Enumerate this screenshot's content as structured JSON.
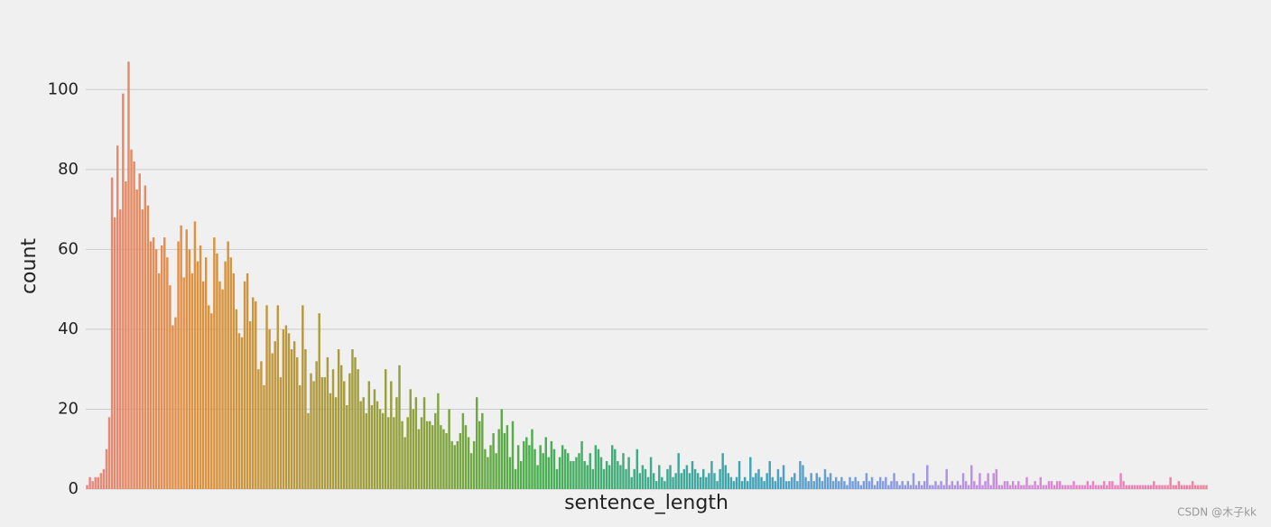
{
  "chart_data": {
    "type": "bar",
    "x_label": "sentence_length",
    "y_label": "count",
    "ylim": [
      0,
      110
    ],
    "yticks": [
      0,
      20,
      40,
      60,
      80,
      100
    ],
    "grid": true,
    "colors": [
      "#e8877f",
      "#e0913c",
      "#b19a3f",
      "#8ca23c",
      "#48af4c",
      "#3fab8a",
      "#41a2b8",
      "#7d9de0",
      "#c48fe0",
      "#ea83c6",
      "#f0829c"
    ],
    "values": [
      1,
      3,
      2,
      3,
      3,
      4,
      5,
      10,
      18,
      78,
      68,
      86,
      70,
      99,
      77,
      107,
      85,
      82,
      75,
      79,
      70,
      76,
      71,
      62,
      63,
      60,
      54,
      61,
      63,
      58,
      51,
      41,
      43,
      62,
      66,
      53,
      65,
      60,
      54,
      67,
      57,
      61,
      52,
      58,
      46,
      44,
      63,
      59,
      52,
      50,
      57,
      62,
      58,
      54,
      45,
      39,
      38,
      52,
      54,
      42,
      48,
      47,
      30,
      32,
      26,
      46,
      40,
      34,
      37,
      46,
      28,
      40,
      41,
      39,
      35,
      37,
      33,
      26,
      46,
      35,
      19,
      29,
      27,
      32,
      44,
      28,
      28,
      33,
      24,
      30,
      23,
      35,
      31,
      27,
      21,
      29,
      35,
      33,
      30,
      22,
      23,
      19,
      27,
      21,
      25,
      22,
      20,
      19,
      30,
      18,
      27,
      18,
      23,
      31,
      17,
      13,
      18,
      25,
      20,
      23,
      15,
      18,
      23,
      17,
      17,
      16,
      19,
      24,
      16,
      15,
      14,
      20,
      12,
      11,
      12,
      14,
      19,
      16,
      13,
      9,
      12,
      23,
      17,
      19,
      10,
      8,
      11,
      14,
      9,
      15,
      20,
      14,
      16,
      8,
      17,
      5,
      11,
      7,
      12,
      13,
      11,
      15,
      10,
      6,
      11,
      9,
      13,
      8,
      12,
      10,
      5,
      8,
      11,
      10,
      9,
      7,
      7,
      8,
      9,
      12,
      7,
      6,
      9,
      5,
      11,
      10,
      8,
      5,
      7,
      6,
      11,
      10,
      7,
      6,
      9,
      5,
      8,
      3,
      5,
      10,
      4,
      6,
      5,
      3,
      8,
      4,
      2,
      6,
      3,
      2,
      5,
      6,
      3,
      4,
      9,
      4,
      5,
      6,
      4,
      7,
      5,
      4,
      3,
      5,
      3,
      4,
      7,
      4,
      2,
      5,
      9,
      6,
      4,
      3,
      2,
      3,
      7,
      2,
      3,
      2,
      8,
      3,
      4,
      5,
      3,
      2,
      4,
      7,
      3,
      2,
      5,
      3,
      6,
      2,
      2,
      3,
      4,
      2,
      7,
      6,
      3,
      2,
      4,
      2,
      4,
      3,
      2,
      5,
      3,
      4,
      2,
      3,
      2,
      3,
      2,
      1,
      3,
      2,
      3,
      2,
      1,
      2,
      4,
      2,
      3,
      1,
      2,
      3,
      2,
      3,
      1,
      2,
      4,
      2,
      1,
      2,
      1,
      2,
      1,
      4,
      1,
      2,
      1,
      2,
      6,
      1,
      1,
      2,
      1,
      2,
      1,
      5,
      1,
      2,
      1,
      2,
      1,
      4,
      2,
      1,
      6,
      2,
      1,
      4,
      1,
      2,
      4,
      1,
      4,
      5,
      1,
      1,
      2,
      2,
      1,
      2,
      1,
      2,
      1,
      1,
      3,
      1,
      1,
      2,
      1,
      3,
      1,
      1,
      2,
      2,
      1,
      2,
      2,
      1,
      1,
      1,
      1,
      2,
      1,
      1,
      1,
      1,
      2,
      1,
      2,
      1,
      1,
      1,
      2,
      1,
      2,
      2,
      1,
      1,
      4,
      2,
      1,
      1,
      1,
      1,
      1,
      1,
      1,
      1,
      1,
      1,
      2,
      1,
      1,
      1,
      1,
      1,
      3,
      1,
      1,
      2,
      1,
      1,
      1,
      1,
      2,
      1,
      1,
      1,
      1,
      1
    ]
  },
  "watermark": "CSDN @木子kk"
}
